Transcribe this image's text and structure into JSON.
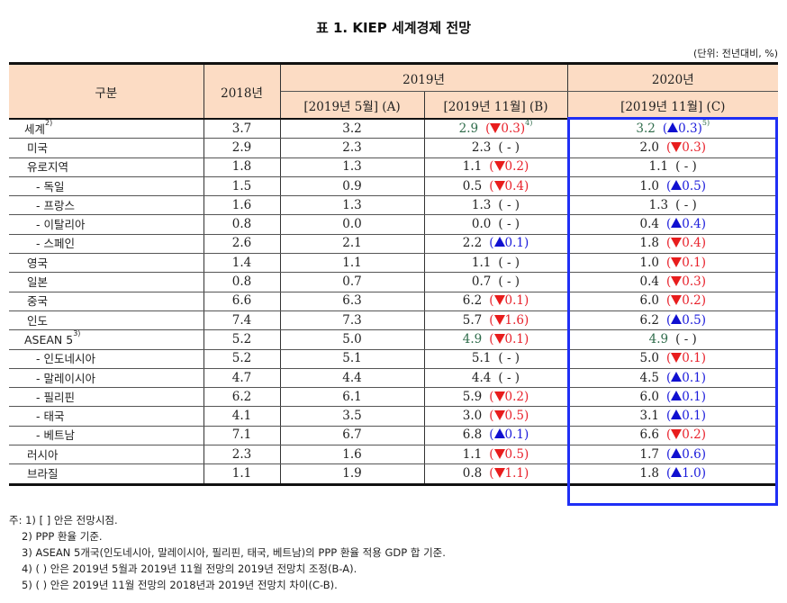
{
  "title": "표 1. KIEP 세계경제 전망",
  "unit": "(단위: 전년대비, %)",
  "header": {
    "category": "구분",
    "y2018": "2018년",
    "y2019": "2019년",
    "y2020": "2020년",
    "colA": "[2019년 5월] (A)",
    "colB": "[2019년 11월] (B)",
    "colC": "[2019년 11월] (C)"
  },
  "colors": {
    "header_bg": "#fcdcc4",
    "down": "#e8202a",
    "up": "#1a1adb",
    "highlight_green": "#2e6b4a",
    "box_border": "#1f2ff5"
  },
  "rows": [
    {
      "name": "세계",
      "sup": "2)",
      "level": 0,
      "y2018": "3.7",
      "a": "3.2",
      "b": "2.9",
      "b_dir": "down",
      "b_chg": "0.3",
      "b_sup": "4)",
      "c": "3.2",
      "c_dir": "up",
      "c_chg": "0.3",
      "c_sup": "5)",
      "green": true
    },
    {
      "name": "미국",
      "sup": "",
      "level": 0,
      "y2018": "2.9",
      "a": "2.3",
      "b": "2.3",
      "b_dir": "none",
      "b_chg": "-",
      "b_sup": "",
      "c": "2.0",
      "c_dir": "down",
      "c_chg": "0.3",
      "c_sup": ""
    },
    {
      "name": "유로지역",
      "sup": "",
      "level": 0,
      "y2018": "1.8",
      "a": "1.3",
      "b": "1.1",
      "b_dir": "down",
      "b_chg": "0.2",
      "b_sup": "",
      "c": "1.1",
      "c_dir": "none",
      "c_chg": "-",
      "c_sup": ""
    },
    {
      "name": "- 독일",
      "sup": "",
      "level": 1,
      "y2018": "1.5",
      "a": "0.9",
      "b": "0.5",
      "b_dir": "down",
      "b_chg": "0.4",
      "b_sup": "",
      "c": "1.0",
      "c_dir": "up",
      "c_chg": "0.5",
      "c_sup": ""
    },
    {
      "name": "- 프랑스",
      "sup": "",
      "level": 1,
      "y2018": "1.6",
      "a": "1.3",
      "b": "1.3",
      "b_dir": "none",
      "b_chg": "-",
      "b_sup": "",
      "c": "1.3",
      "c_dir": "none",
      "c_chg": "-",
      "c_sup": ""
    },
    {
      "name": "- 이탈리아",
      "sup": "",
      "level": 1,
      "y2018": "0.8",
      "a": "0.0",
      "b": "0.0",
      "b_dir": "none",
      "b_chg": "-",
      "b_sup": "",
      "c": "0.4",
      "c_dir": "up",
      "c_chg": "0.4",
      "c_sup": ""
    },
    {
      "name": "- 스페인",
      "sup": "",
      "level": 1,
      "y2018": "2.6",
      "a": "2.1",
      "b": "2.2",
      "b_dir": "up",
      "b_chg": "0.1",
      "b_sup": "",
      "c": "1.8",
      "c_dir": "down",
      "c_chg": "0.4",
      "c_sup": ""
    },
    {
      "name": "영국",
      "sup": "",
      "level": 0,
      "y2018": "1.4",
      "a": "1.1",
      "b": "1.1",
      "b_dir": "none",
      "b_chg": "-",
      "b_sup": "",
      "c": "1.0",
      "c_dir": "down",
      "c_chg": "0.1",
      "c_sup": ""
    },
    {
      "name": "일본",
      "sup": "",
      "level": 0,
      "y2018": "0.8",
      "a": "0.7",
      "b": "0.7",
      "b_dir": "none",
      "b_chg": "-",
      "b_sup": "",
      "c": "0.4",
      "c_dir": "down",
      "c_chg": "0.3",
      "c_sup": ""
    },
    {
      "name": "중국",
      "sup": "",
      "level": 0,
      "y2018": "6.6",
      "a": "6.3",
      "b": "6.2",
      "b_dir": "down",
      "b_chg": "0.1",
      "b_sup": "",
      "c": "6.0",
      "c_dir": "down",
      "c_chg": "0.2",
      "c_sup": ""
    },
    {
      "name": "인도",
      "sup": "",
      "level": 0,
      "y2018": "7.4",
      "a": "7.3",
      "b": "5.7",
      "b_dir": "down",
      "b_chg": "1.6",
      "b_sup": "",
      "c": "6.2",
      "c_dir": "up",
      "c_chg": "0.5",
      "c_sup": ""
    },
    {
      "name": "ASEAN 5",
      "sup": "3)",
      "level": 0,
      "y2018": "5.2",
      "a": "5.0",
      "b": "4.9",
      "b_dir": "down",
      "b_chg": "0.1",
      "b_sup": "",
      "c": "4.9",
      "c_dir": "none",
      "c_chg": "-",
      "c_sup": "",
      "green": true
    },
    {
      "name": "- 인도네시아",
      "sup": "",
      "level": 1,
      "y2018": "5.2",
      "a": "5.1",
      "b": "5.1",
      "b_dir": "none",
      "b_chg": "-",
      "b_sup": "",
      "c": "5.0",
      "c_dir": "down",
      "c_chg": "0.1",
      "c_sup": ""
    },
    {
      "name": "- 말레이시아",
      "sup": "",
      "level": 1,
      "y2018": "4.7",
      "a": "4.4",
      "b": "4.4",
      "b_dir": "none",
      "b_chg": "-",
      "b_sup": "",
      "c": "4.5",
      "c_dir": "up",
      "c_chg": "0.1",
      "c_sup": ""
    },
    {
      "name": "- 필리핀",
      "sup": "",
      "level": 1,
      "y2018": "6.2",
      "a": "6.1",
      "b": "5.9",
      "b_dir": "down",
      "b_chg": "0.2",
      "b_sup": "",
      "c": "6.0",
      "c_dir": "up",
      "c_chg": "0.1",
      "c_sup": ""
    },
    {
      "name": "- 태국",
      "sup": "",
      "level": 1,
      "y2018": "4.1",
      "a": "3.5",
      "b": "3.0",
      "b_dir": "down",
      "b_chg": "0.5",
      "b_sup": "",
      "c": "3.1",
      "c_dir": "up",
      "c_chg": "0.1",
      "c_sup": ""
    },
    {
      "name": "- 베트남",
      "sup": "",
      "level": 1,
      "y2018": "7.1",
      "a": "6.7",
      "b": "6.8",
      "b_dir": "up",
      "b_chg": "0.1",
      "b_sup": "",
      "c": "6.6",
      "c_dir": "down",
      "c_chg": "0.2",
      "c_sup": ""
    },
    {
      "name": "러시아",
      "sup": "",
      "level": 0,
      "y2018": "2.3",
      "a": "1.6",
      "b": "1.1",
      "b_dir": "down",
      "b_chg": "0.5",
      "b_sup": "",
      "c": "1.7",
      "c_dir": "up",
      "c_chg": "0.6",
      "c_sup": ""
    },
    {
      "name": "브라질",
      "sup": "",
      "level": 0,
      "y2018": "1.1",
      "a": "1.9",
      "b": "0.8",
      "b_dir": "down",
      "b_chg": "1.1",
      "b_sup": "",
      "c": "1.8",
      "c_dir": "up",
      "c_chg": "1.0",
      "c_sup": ""
    }
  ],
  "notes": [
    "주: 1) [ ] 안은 전망시점.",
    "2) PPP 환율 기준.",
    "3) ASEAN 5개국(인도네시아, 말레이시아, 필리핀, 태국, 베트남)의 PPP 환율 적용 GDP 합 기준.",
    "4) (   ) 안은 2019년 5월과 2019년 11월 전망의 2019년 전망치 조정(B-A).",
    "5) (   ) 안은 2019년 11월 전망의 2018년과 2019년 전망치 차이(C-B)."
  ]
}
